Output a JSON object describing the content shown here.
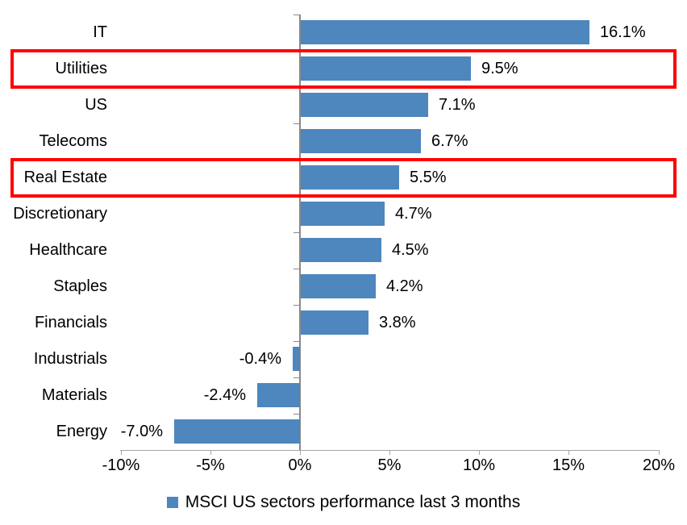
{
  "chart_data": {
    "type": "bar",
    "orientation": "horizontal",
    "categories": [
      "IT",
      "Utilities",
      "US",
      "Telecoms",
      "Real Estate",
      "Discretionary",
      "Healthcare",
      "Staples",
      "Financials",
      "Industrials",
      "Materials",
      "Energy"
    ],
    "values": [
      16.1,
      9.5,
      7.1,
      6.7,
      5.5,
      4.7,
      4.5,
      4.2,
      3.8,
      -0.4,
      -2.4,
      -7.0
    ],
    "value_labels": [
      "16.1%",
      "9.5%",
      "7.1%",
      "6.7%",
      "5.5%",
      "4.7%",
      "4.5%",
      "4.2%",
      "3.8%",
      "-0.4%",
      "-2.4%",
      "-7.0%"
    ],
    "x_tick_values": [
      -10,
      -5,
      0,
      5,
      10,
      15,
      20
    ],
    "x_tick_labels": [
      "-10%",
      "-5%",
      "0%",
      "5%",
      "10%",
      "15%",
      "20%"
    ],
    "xlim": [
      -10,
      20
    ],
    "grid": false,
    "legend": "MSCI US sectors performance last 3 months",
    "legend_position": "bottom-center",
    "bar_color": "#4e86be",
    "axis_color": "#a6a6a6",
    "highlight_color": "#ff0000",
    "highlighted_categories": [
      "Utilities",
      "Real Estate"
    ]
  }
}
